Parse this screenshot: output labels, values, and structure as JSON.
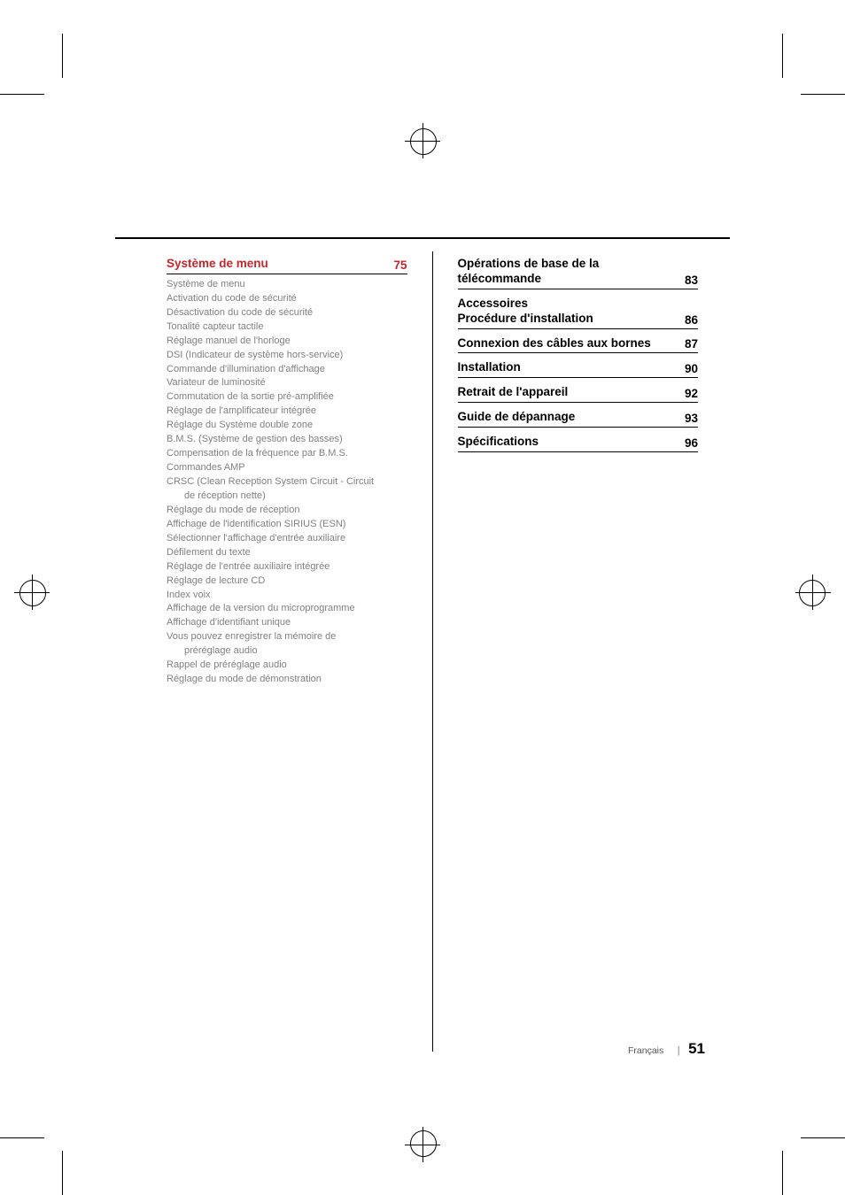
{
  "colors": {
    "accent": "#c1272d",
    "body_text": "#808080",
    "heading_text": "#000000",
    "rule": "#000000",
    "background": "#ffffff"
  },
  "typography": {
    "heading_fontsize_pt": 10,
    "body_fontsize_pt": 8,
    "footer_pagenum_fontsize_pt": 13,
    "font_family": "sans-serif"
  },
  "left_column": {
    "section": {
      "title": "Système de menu",
      "page": "75",
      "active": true
    },
    "items": [
      "Système de menu",
      "Activation du code de sécurité",
      "Désactivation du code de sécurité",
      "Tonalité capteur tactile",
      "Réglage manuel de l'horloge",
      "DSI (Indicateur de système hors-service)",
      "Commande d'illumination d'affichage",
      "Variateur de luminosité",
      "Commutation de la sortie pré-amplifiée",
      "Réglage de l'amplificateur intégrée",
      "Réglage du Système double zone",
      "B.M.S. (Système de gestion des basses)",
      "Compensation de la fréquence par B.M.S.",
      "Commandes AMP",
      "CRSC (Clean Reception System Circuit - Circuit",
      "de réception nette)",
      "Réglage du mode de réception",
      "Affichage de l'identification SIRIUS (ESN)",
      "Sélectionner l'affichage d'entrée auxiliaire",
      "Défilement du texte",
      "Réglage de l'entrée auxiliaire intégrée",
      "Réglage de lecture CD",
      "Index voix",
      "Affichage de la version du microprogramme",
      "Affichage d'identifiant unique",
      "Vous pouvez enregistrer la mémoire de",
      "préréglage audio",
      "Rappel de préréglage audio",
      "Réglage du mode de démonstration"
    ],
    "indented_indices": [
      15,
      26
    ]
  },
  "right_column": {
    "sections": [
      {
        "title": "Opérations de base de la télécommande",
        "page": "83"
      },
      {
        "title": "Accessoires\nProcédure d'installation",
        "page": "86"
      },
      {
        "title": "Connexion des câbles aux bornes",
        "page": "87"
      },
      {
        "title": "Installation",
        "page": "90"
      },
      {
        "title": "Retrait de l'appareil",
        "page": "92"
      },
      {
        "title": "Guide de dépannage",
        "page": "93"
      },
      {
        "title": "Spécifications",
        "page": "96"
      }
    ]
  },
  "footer": {
    "language": "Français",
    "separator": "|",
    "page_number": "51"
  }
}
